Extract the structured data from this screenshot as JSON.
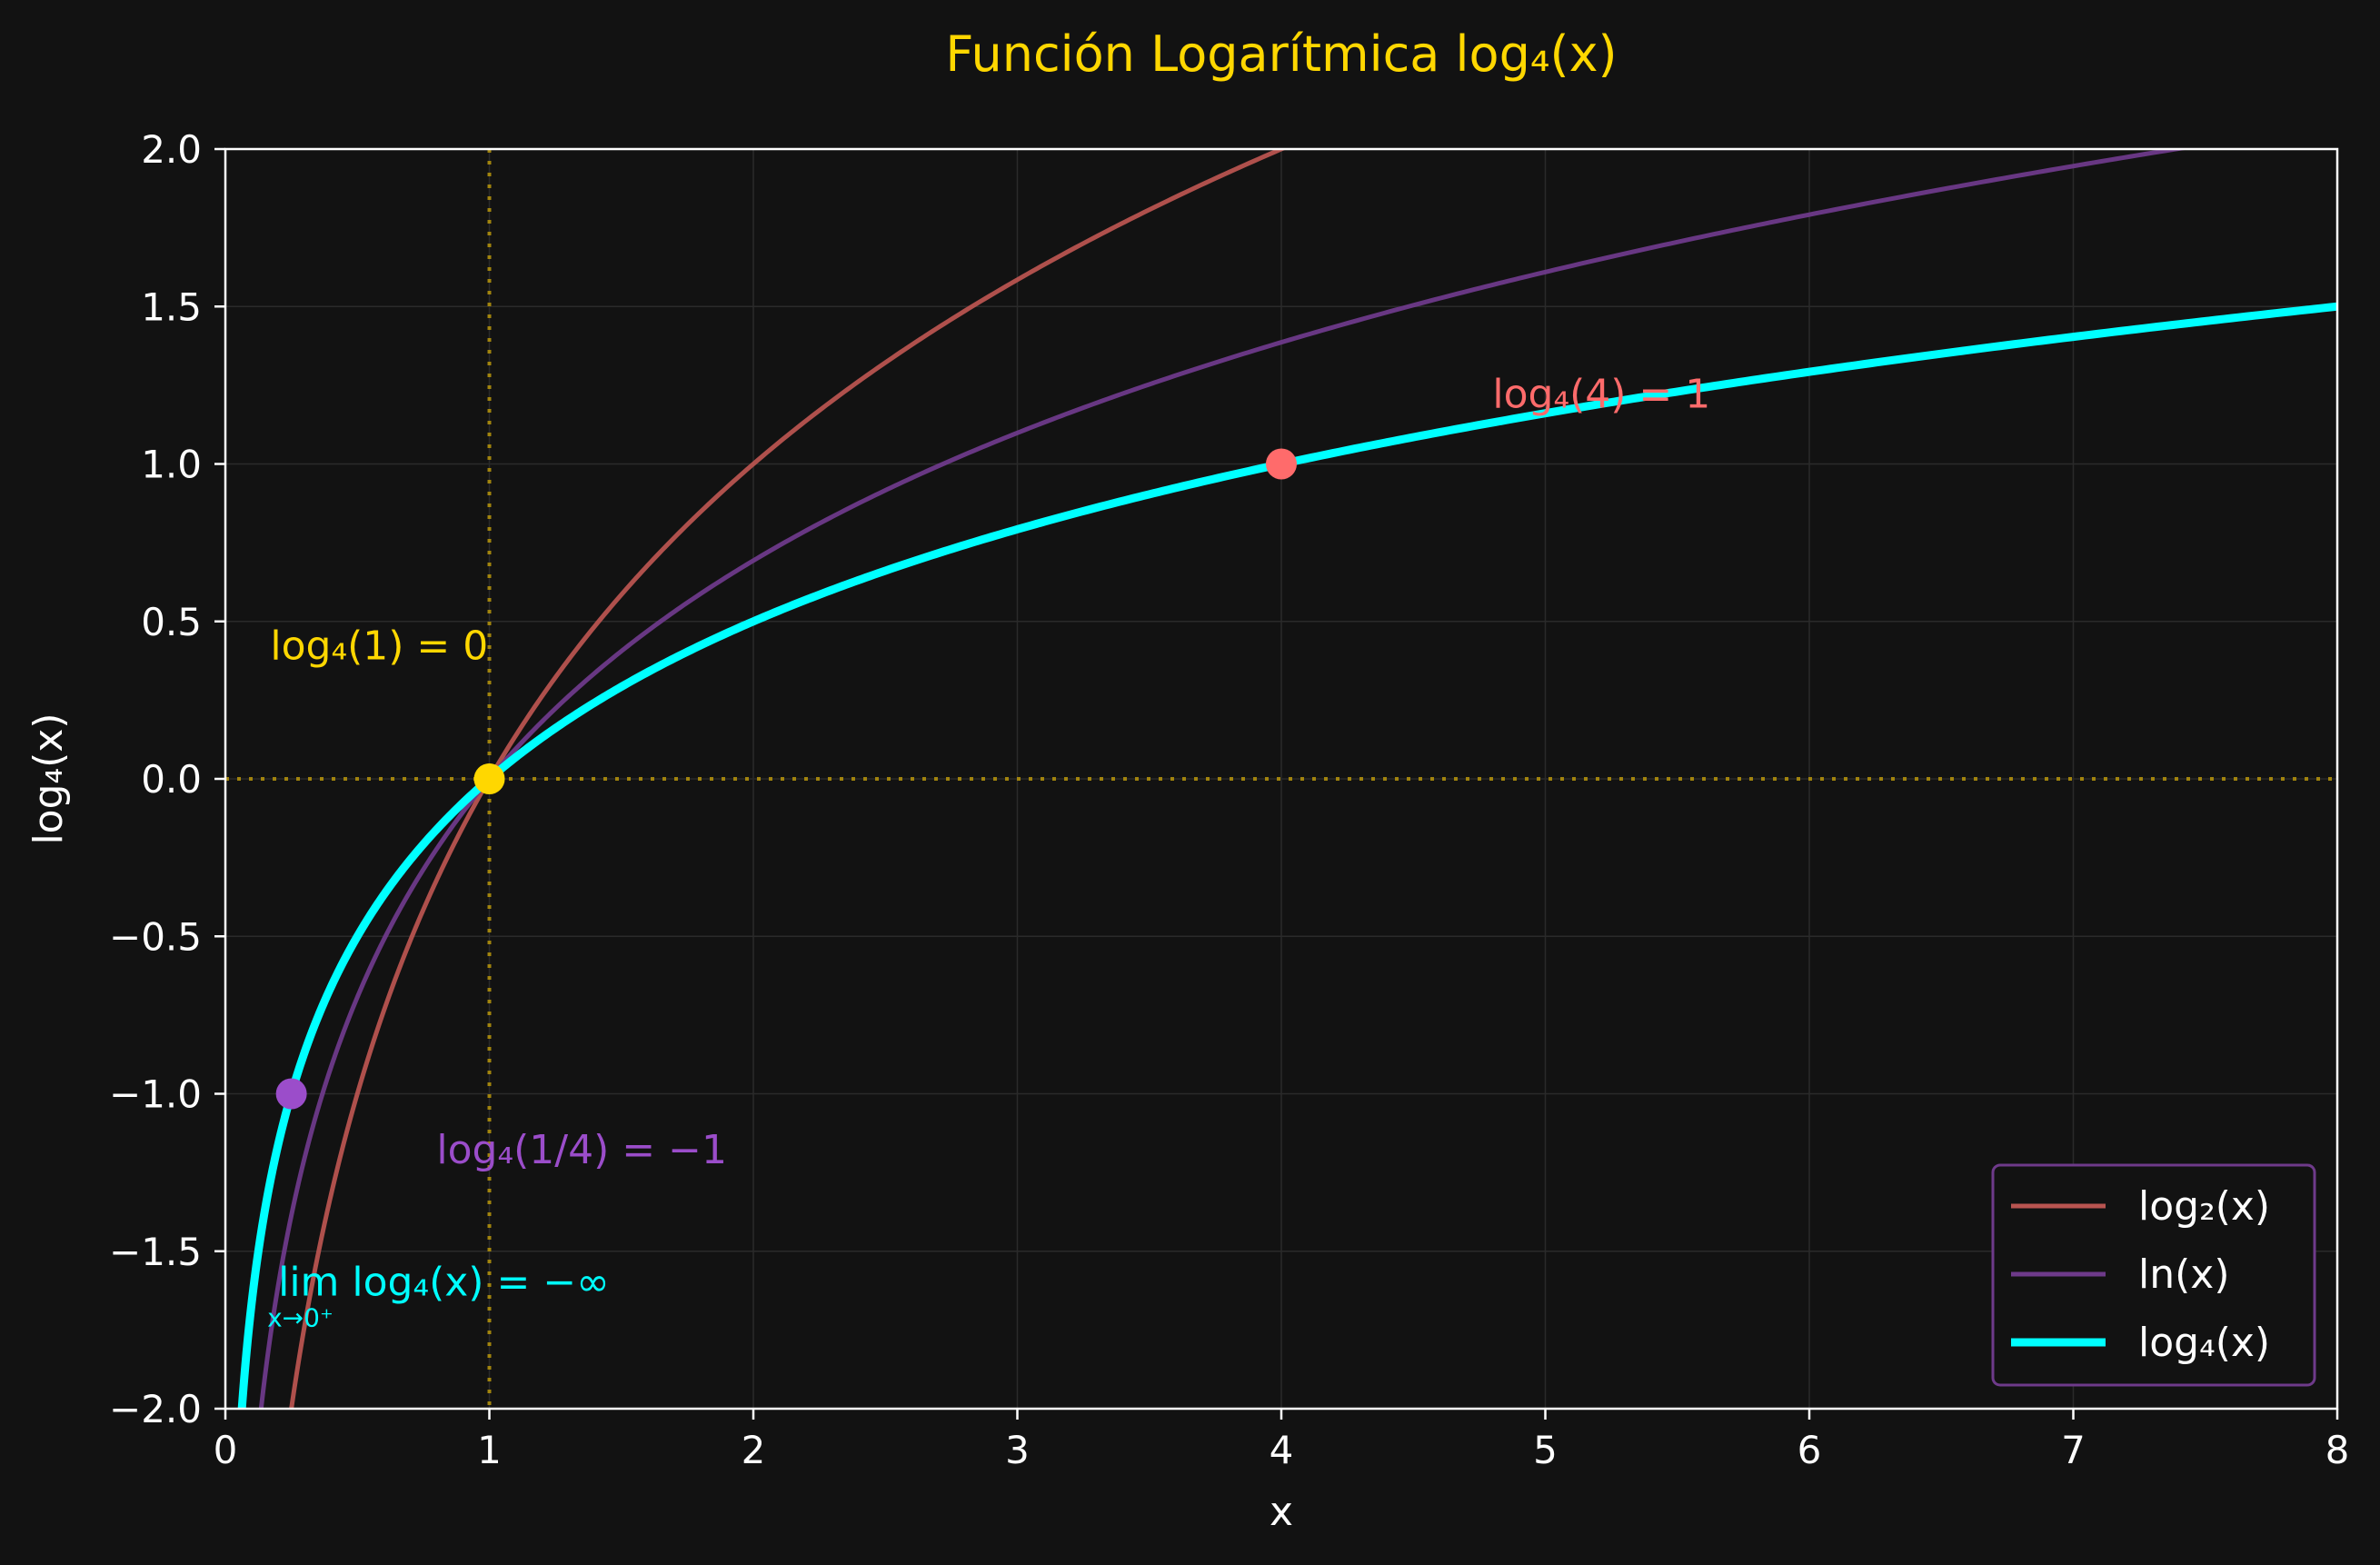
{
  "chart_data": {
    "type": "line",
    "title": "Función Logarítmica log₄(x)",
    "xlabel": "x",
    "ylabel": "log₄(x)",
    "xlim": [
      0,
      8
    ],
    "ylim": [
      -2,
      2
    ],
    "grid": true,
    "legend_position": "bottom-right",
    "x_ticks": [
      "0",
      "1",
      "2",
      "3",
      "4",
      "5",
      "6",
      "7",
      "8"
    ],
    "y_ticks": [
      "−2.0",
      "−1.5",
      "−1.0",
      "−0.5",
      "0.0",
      "0.5",
      "1.0",
      "1.5",
      "2.0"
    ],
    "series": [
      {
        "name": "log₂(x)",
        "base": 2,
        "color": "#b85450",
        "x_range": [
          0.25,
          8
        ]
      },
      {
        "name": "ln(x)",
        "base": 2.718281828,
        "color": "#6e3a8a",
        "x_range": [
          0.1353,
          8
        ]
      },
      {
        "name": "log₄(x)",
        "base": 4,
        "color": "#00ffff",
        "x_range": [
          0.0625,
          8
        ]
      }
    ],
    "points": [
      {
        "x": 1,
        "y": 0,
        "color": "#ffd700"
      },
      {
        "x": 4,
        "y": 1,
        "color": "#ff6b6b"
      },
      {
        "x": 0.25,
        "y": -1,
        "color": "#9b4dca"
      }
    ],
    "reference_lines": {
      "vertical_x": 1,
      "horizontal_y": 0,
      "color": "#b8960c"
    },
    "annotations": [
      {
        "text": "log₄(1) = 0",
        "color": "#ffd700",
        "x": 0.17,
        "y": 0.42
      },
      {
        "text": "log₄(4) = 1",
        "color": "#ff6b6b",
        "x": 4.8,
        "y": 1.22
      },
      {
        "text": "log₄(1/4) = −1",
        "color": "#9b4dca",
        "x": 0.8,
        "y": -1.18
      },
      {
        "text": "lim log₄(x) = −∞",
        "sub": "x→0⁺",
        "color": "#00ffff",
        "x": 0.2,
        "y": -1.6
      }
    ],
    "colors": {
      "background": "#121212",
      "title": "#ffd700",
      "axes": "#ffffff",
      "grid": "#2a2a2a",
      "legend_border": "#6e3a8a"
    }
  }
}
